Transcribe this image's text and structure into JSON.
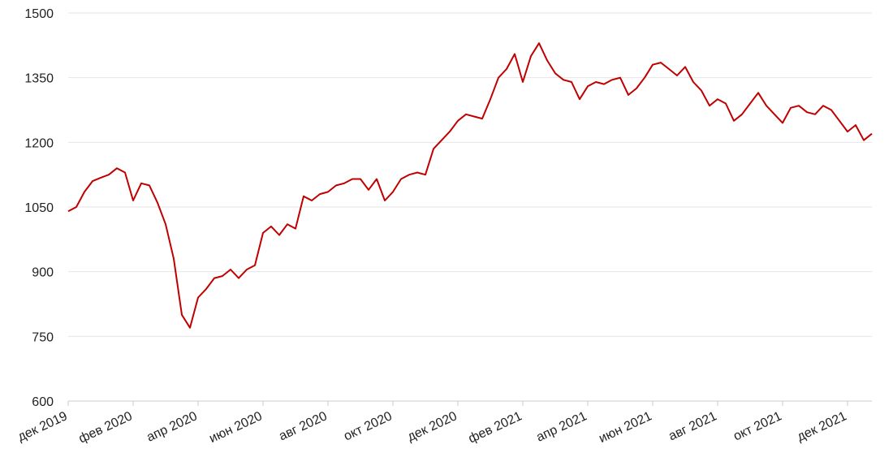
{
  "chart_data": {
    "type": "line",
    "color": "#c00000",
    "grid": true,
    "categories": [
      "дек 2019",
      null,
      null,
      null,
      null,
      null,
      null,
      null,
      "фев 2020",
      null,
      null,
      null,
      null,
      null,
      null,
      null,
      "апр 2020",
      null,
      null,
      null,
      null,
      null,
      null,
      null,
      "июн 2020",
      null,
      null,
      null,
      null,
      null,
      null,
      null,
      "авг 2020",
      null,
      null,
      null,
      null,
      null,
      null,
      null,
      "окт 2020",
      null,
      null,
      null,
      null,
      null,
      null,
      null,
      "дек 2020",
      null,
      null,
      null,
      null,
      null,
      null,
      null,
      "фев 2021",
      null,
      null,
      null,
      null,
      null,
      null,
      null,
      "апр 2021",
      null,
      null,
      null,
      null,
      null,
      null,
      null,
      "июн 2021",
      null,
      null,
      null,
      null,
      null,
      null,
      null,
      "авг 2021",
      null,
      null,
      null,
      null,
      null,
      null,
      null,
      "окт 2021",
      null,
      null,
      null,
      null,
      null,
      null,
      null,
      "дек 2021",
      null,
      null,
      null
    ],
    "values": [
      1040,
      1050,
      1085,
      1110,
      1118,
      1125,
      1140,
      1130,
      1065,
      1105,
      1100,
      1060,
      1010,
      930,
      800,
      770,
      840,
      860,
      885,
      890,
      905,
      885,
      905,
      915,
      990,
      1005,
      985,
      1010,
      1000,
      1075,
      1065,
      1080,
      1085,
      1100,
      1105,
      1115,
      1115,
      1090,
      1115,
      1065,
      1085,
      1115,
      1125,
      1130,
      1125,
      1185,
      1205,
      1225,
      1250,
      1265,
      1260,
      1255,
      1300,
      1350,
      1370,
      1405,
      1340,
      1400,
      1430,
      1390,
      1360,
      1345,
      1340,
      1300,
      1330,
      1340,
      1335,
      1345,
      1350,
      1310,
      1325,
      1350,
      1380,
      1385,
      1370,
      1355,
      1375,
      1340,
      1320,
      1285,
      1300,
      1290,
      1250,
      1265,
      1290,
      1315,
      1285,
      1265,
      1245,
      1280,
      1285,
      1270,
      1265,
      1285,
      1275,
      1250,
      1225,
      1240,
      1205,
      1220
    ],
    "ylim": [
      600,
      1500
    ],
    "yticks": [
      600,
      750,
      900,
      1050,
      1200,
      1350,
      1500
    ]
  }
}
